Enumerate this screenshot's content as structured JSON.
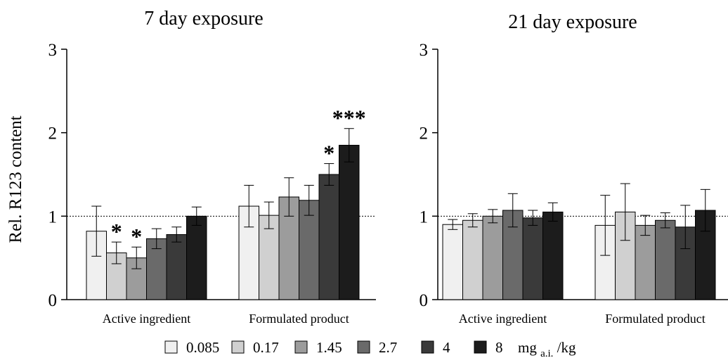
{
  "legend": {
    "unit_main": "mg",
    "unit_sub": "a.i.",
    "unit_tail": "/kg"
  },
  "chart_data": [
    {
      "type": "bar",
      "title": "7 day exposure",
      "ylabel": "Rel. R123 content",
      "ylim": [
        0,
        3
      ],
      "yticks": [
        0,
        1,
        2,
        3
      ],
      "reference_line": 1,
      "categories": [
        "Active ingredient",
        "Formulated product"
      ],
      "series": [
        {
          "name": "0.085",
          "color": "#f0f0f0",
          "values": [
            0.82,
            1.12
          ],
          "errors": [
            0.3,
            0.25
          ]
        },
        {
          "name": "0.17",
          "color": "#d0d0d0",
          "values": [
            0.56,
            1.01
          ],
          "errors": [
            0.13,
            0.16
          ]
        },
        {
          "name": "1.45",
          "color": "#9c9c9c",
          "values": [
            0.5,
            1.23
          ],
          "errors": [
            0.13,
            0.23
          ]
        },
        {
          "name": "2.7",
          "color": "#6a6a6a",
          "values": [
            0.73,
            1.19
          ],
          "errors": [
            0.12,
            0.18
          ]
        },
        {
          "name": "4",
          "color": "#3a3a3a",
          "values": [
            0.78,
            1.5
          ],
          "errors": [
            0.09,
            0.13
          ]
        },
        {
          "name": "8",
          "color": "#1c1c1c",
          "values": [
            1.0,
            1.85
          ],
          "errors": [
            0.11,
            0.2
          ]
        }
      ],
      "annotations": [
        {
          "category": 0,
          "series": 1,
          "text": "*"
        },
        {
          "category": 0,
          "series": 2,
          "text": "*"
        },
        {
          "category": 1,
          "series": 4,
          "text": "*"
        },
        {
          "category": 1,
          "series": 5,
          "text": "***"
        }
      ]
    },
    {
      "type": "bar",
      "title": "21 day exposure",
      "ylabel": "",
      "ylim": [
        0,
        3
      ],
      "yticks": [
        0,
        1,
        2,
        3
      ],
      "reference_line": 1,
      "categories": [
        "Active ingredient",
        "Formulated product"
      ],
      "series": [
        {
          "name": "0.085",
          "color": "#f0f0f0",
          "values": [
            0.9,
            0.89
          ],
          "errors": [
            0.06,
            0.36
          ]
        },
        {
          "name": "0.17",
          "color": "#d0d0d0",
          "values": [
            0.95,
            1.05
          ],
          "errors": [
            0.08,
            0.34
          ]
        },
        {
          "name": "1.45",
          "color": "#9c9c9c",
          "values": [
            1.0,
            0.89
          ],
          "errors": [
            0.08,
            0.12
          ]
        },
        {
          "name": "2.7",
          "color": "#6a6a6a",
          "values": [
            1.07,
            0.95
          ],
          "errors": [
            0.2,
            0.09
          ]
        },
        {
          "name": "4",
          "color": "#3a3a3a",
          "values": [
            0.98,
            0.87
          ],
          "errors": [
            0.09,
            0.26
          ]
        },
        {
          "name": "8",
          "color": "#1c1c1c",
          "values": [
            1.05,
            1.07
          ],
          "errors": [
            0.11,
            0.25
          ]
        }
      ],
      "annotations": []
    }
  ]
}
